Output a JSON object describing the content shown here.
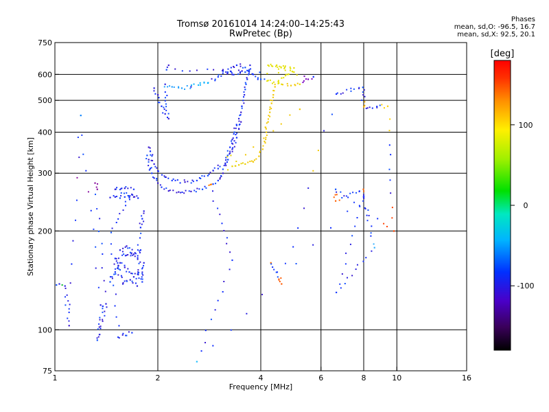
{
  "header": {
    "title_line1": "Tromsø 20161014 14:24:00–14:25:43",
    "title_line2": "RwPretec (Bp)"
  },
  "phases": {
    "heading": "Phases",
    "line_o": "mean, sd,O: -96.5, 16.7",
    "line_x": "mean, sd,X:  92.5, 20.1"
  },
  "colorbar": {
    "label": "[deg]",
    "ticks": [
      {
        "value": 100,
        "label": "100"
      },
      {
        "value": 0,
        "label": "0"
      },
      {
        "value": -100,
        "label": "-100"
      }
    ],
    "range": [
      -180,
      180
    ]
  },
  "chart_data": {
    "type": "scatter",
    "xlabel": "Frequency [MHz]",
    "ylabel": "Stationary phase Virtual Height [km]",
    "xscale": "log",
    "yscale": "log",
    "xlim": [
      1,
      16
    ],
    "ylim": [
      75,
      750
    ],
    "x_ticks": [
      {
        "value": 1,
        "label": "1"
      },
      {
        "value": 2,
        "label": "2"
      },
      {
        "value": 4,
        "label": "4"
      },
      {
        "value": 6,
        "label": "6"
      },
      {
        "value": 8,
        "label": "8"
      },
      {
        "value": 10,
        "label": "10"
      },
      {
        "value": 16,
        "label": "16"
      }
    ],
    "y_ticks": [
      {
        "value": 75,
        "label": "75"
      },
      {
        "value": 100,
        "label": "100"
      },
      {
        "value": 200,
        "label": "200"
      },
      {
        "value": 300,
        "label": "300"
      },
      {
        "value": 400,
        "label": "400"
      },
      {
        "value": 500,
        "label": "500"
      },
      {
        "value": 600,
        "label": "600"
      },
      {
        "value": 750,
        "label": "750"
      }
    ],
    "x_grid": [
      2,
      4,
      6,
      8,
      10
    ],
    "y_grid": [
      100,
      200,
      300,
      400,
      500,
      600
    ],
    "grid": true,
    "color_by": "phase [deg]",
    "series": [
      {
        "points": [
          [
            1.01,
            137
          ],
          [
            1.03,
            138
          ],
          [
            1.05,
            137
          ],
          [
            1.07,
            136
          ],
          [
            1.1,
            103
          ],
          [
            1.19,
            450
          ],
          [
            1.36,
            119
          ],
          [
            1.38,
            118
          ],
          [
            1.33,
            93
          ],
          [
            1.41,
            120
          ],
          [
            1.31,
            280
          ],
          [
            1.33,
            268
          ]
        ]
      },
      {
        "points": [
          [
            1.45,
            253
          ],
          [
            1.5,
            254
          ],
          [
            1.55,
            252
          ],
          [
            1.6,
            254
          ],
          [
            1.65,
            253
          ],
          [
            1.7,
            254
          ],
          [
            1.75,
            252
          ],
          [
            1.5,
            268
          ],
          [
            1.6,
            270
          ],
          [
            1.7,
            268
          ],
          [
            1.46,
            198
          ],
          [
            1.53,
            95
          ],
          [
            1.68,
            98
          ]
        ]
      },
      {
        "points": [
          [
            1.45,
            140
          ],
          [
            1.5,
            150
          ],
          [
            1.55,
            160
          ],
          [
            1.6,
            155
          ],
          [
            1.65,
            150
          ],
          [
            1.7,
            145
          ],
          [
            1.75,
            150
          ],
          [
            1.8,
            140
          ],
          [
            1.82,
            160
          ],
          [
            1.55,
            175
          ],
          [
            1.62,
            180
          ],
          [
            1.7,
            170
          ],
          [
            1.78,
            175
          ],
          [
            1.5,
            165
          ],
          [
            1.58,
            138
          ],
          [
            1.66,
            142
          ],
          [
            1.74,
            136
          ],
          [
            1.78,
            205
          ],
          [
            1.8,
            218
          ],
          [
            1.82,
            230
          ]
        ]
      },
      {
        "points": [
          [
            1.86,
            340
          ],
          [
            1.88,
            330
          ],
          [
            1.9,
            310
          ],
          [
            1.92,
            300
          ],
          [
            1.95,
            290
          ],
          [
            2.0,
            280
          ],
          [
            2.05,
            272
          ],
          [
            2.15,
            265
          ],
          [
            2.3,
            263
          ],
          [
            2.5,
            264
          ],
          [
            2.7,
            268
          ],
          [
            2.9,
            278
          ],
          [
            3.0,
            285
          ],
          [
            3.1,
            300
          ],
          [
            3.15,
            320
          ],
          [
            3.2,
            340
          ],
          [
            3.25,
            360
          ],
          [
            3.3,
            380
          ],
          [
            3.35,
            400
          ],
          [
            3.4,
            420
          ],
          [
            3.45,
            440
          ],
          [
            3.5,
            460
          ],
          [
            3.52,
            480
          ],
          [
            3.55,
            500
          ],
          [
            3.58,
            520
          ],
          [
            3.6,
            540
          ],
          [
            3.62,
            560
          ],
          [
            3.65,
            580
          ],
          [
            3.68,
            600
          ],
          [
            3.7,
            620
          ],
          [
            3.72,
            640
          ]
        ]
      },
      {
        "points": [
          [
            1.88,
            360
          ],
          [
            1.9,
            350
          ],
          [
            1.95,
            320
          ],
          [
            2.0,
            305
          ],
          [
            2.1,
            292
          ],
          [
            2.2,
            285
          ],
          [
            2.4,
            282
          ],
          [
            2.6,
            285
          ],
          [
            2.8,
            295
          ],
          [
            3.0,
            310
          ],
          [
            3.2,
            330
          ],
          [
            3.3,
            355
          ],
          [
            3.4,
            385
          ],
          [
            3.45,
            410
          ],
          [
            3.5,
            430
          ]
        ]
      },
      {
        "points": [
          [
            1.95,
            545
          ],
          [
            2.0,
            520
          ],
          [
            2.05,
            480
          ],
          [
            2.1,
            455
          ],
          [
            2.15,
            440
          ],
          [
            2.1,
            560
          ],
          [
            2.2,
            550
          ],
          [
            2.35,
            545
          ],
          [
            2.5,
            550
          ],
          [
            2.8,
            565
          ],
          [
            3.0,
            590
          ],
          [
            3.2,
            610
          ],
          [
            3.4,
            640
          ],
          [
            3.6,
            630
          ],
          [
            3.8,
            600
          ],
          [
            4.0,
            580
          ],
          [
            4.2,
            575
          ],
          [
            4.6,
            560
          ],
          [
            4.9,
            555
          ],
          [
            5.2,
            560
          ],
          [
            5.5,
            580
          ],
          [
            5.7,
            590
          ],
          [
            3.1,
            620
          ],
          [
            3.3,
            600
          ],
          [
            3.6,
            610
          ],
          [
            2.12,
            620
          ],
          [
            2.15,
            640
          ]
        ]
      },
      {
        "points": [
          [
            3.3,
            315
          ],
          [
            3.45,
            318
          ],
          [
            3.6,
            320
          ],
          [
            3.8,
            325
          ],
          [
            3.95,
            338
          ],
          [
            4.05,
            355
          ],
          [
            4.1,
            375
          ],
          [
            4.15,
            400
          ],
          [
            4.2,
            430
          ],
          [
            4.25,
            460
          ],
          [
            4.3,
            490
          ],
          [
            4.35,
            520
          ],
          [
            4.4,
            550
          ],
          [
            4.5,
            570
          ],
          [
            4.6,
            585
          ],
          [
            4.8,
            600
          ],
          [
            5.0,
            610
          ],
          [
            4.2,
            640
          ],
          [
            4.45,
            640
          ],
          [
            4.7,
            630
          ],
          [
            5.0,
            628
          ]
        ]
      },
      {
        "points": [
          [
            4.28,
            160
          ],
          [
            4.6,
            138
          ],
          [
            6.65,
            523
          ],
          [
            7.95,
            548
          ],
          [
            7.97,
            520
          ],
          [
            8.0,
            478
          ],
          [
            9.4,
            480
          ],
          [
            9.8,
            200
          ],
          [
            6.62,
            268
          ],
          [
            6.62,
            247
          ],
          [
            7.98,
            268
          ],
          [
            8.0,
            252
          ],
          [
            6.65,
            130
          ],
          [
            8.6,
            178
          ],
          [
            8.0,
            255
          ],
          [
            2.6,
            80
          ],
          [
            3.3,
            163
          ],
          [
            2.85,
            277
          ],
          [
            5.2,
            470
          ]
        ]
      }
    ]
  }
}
